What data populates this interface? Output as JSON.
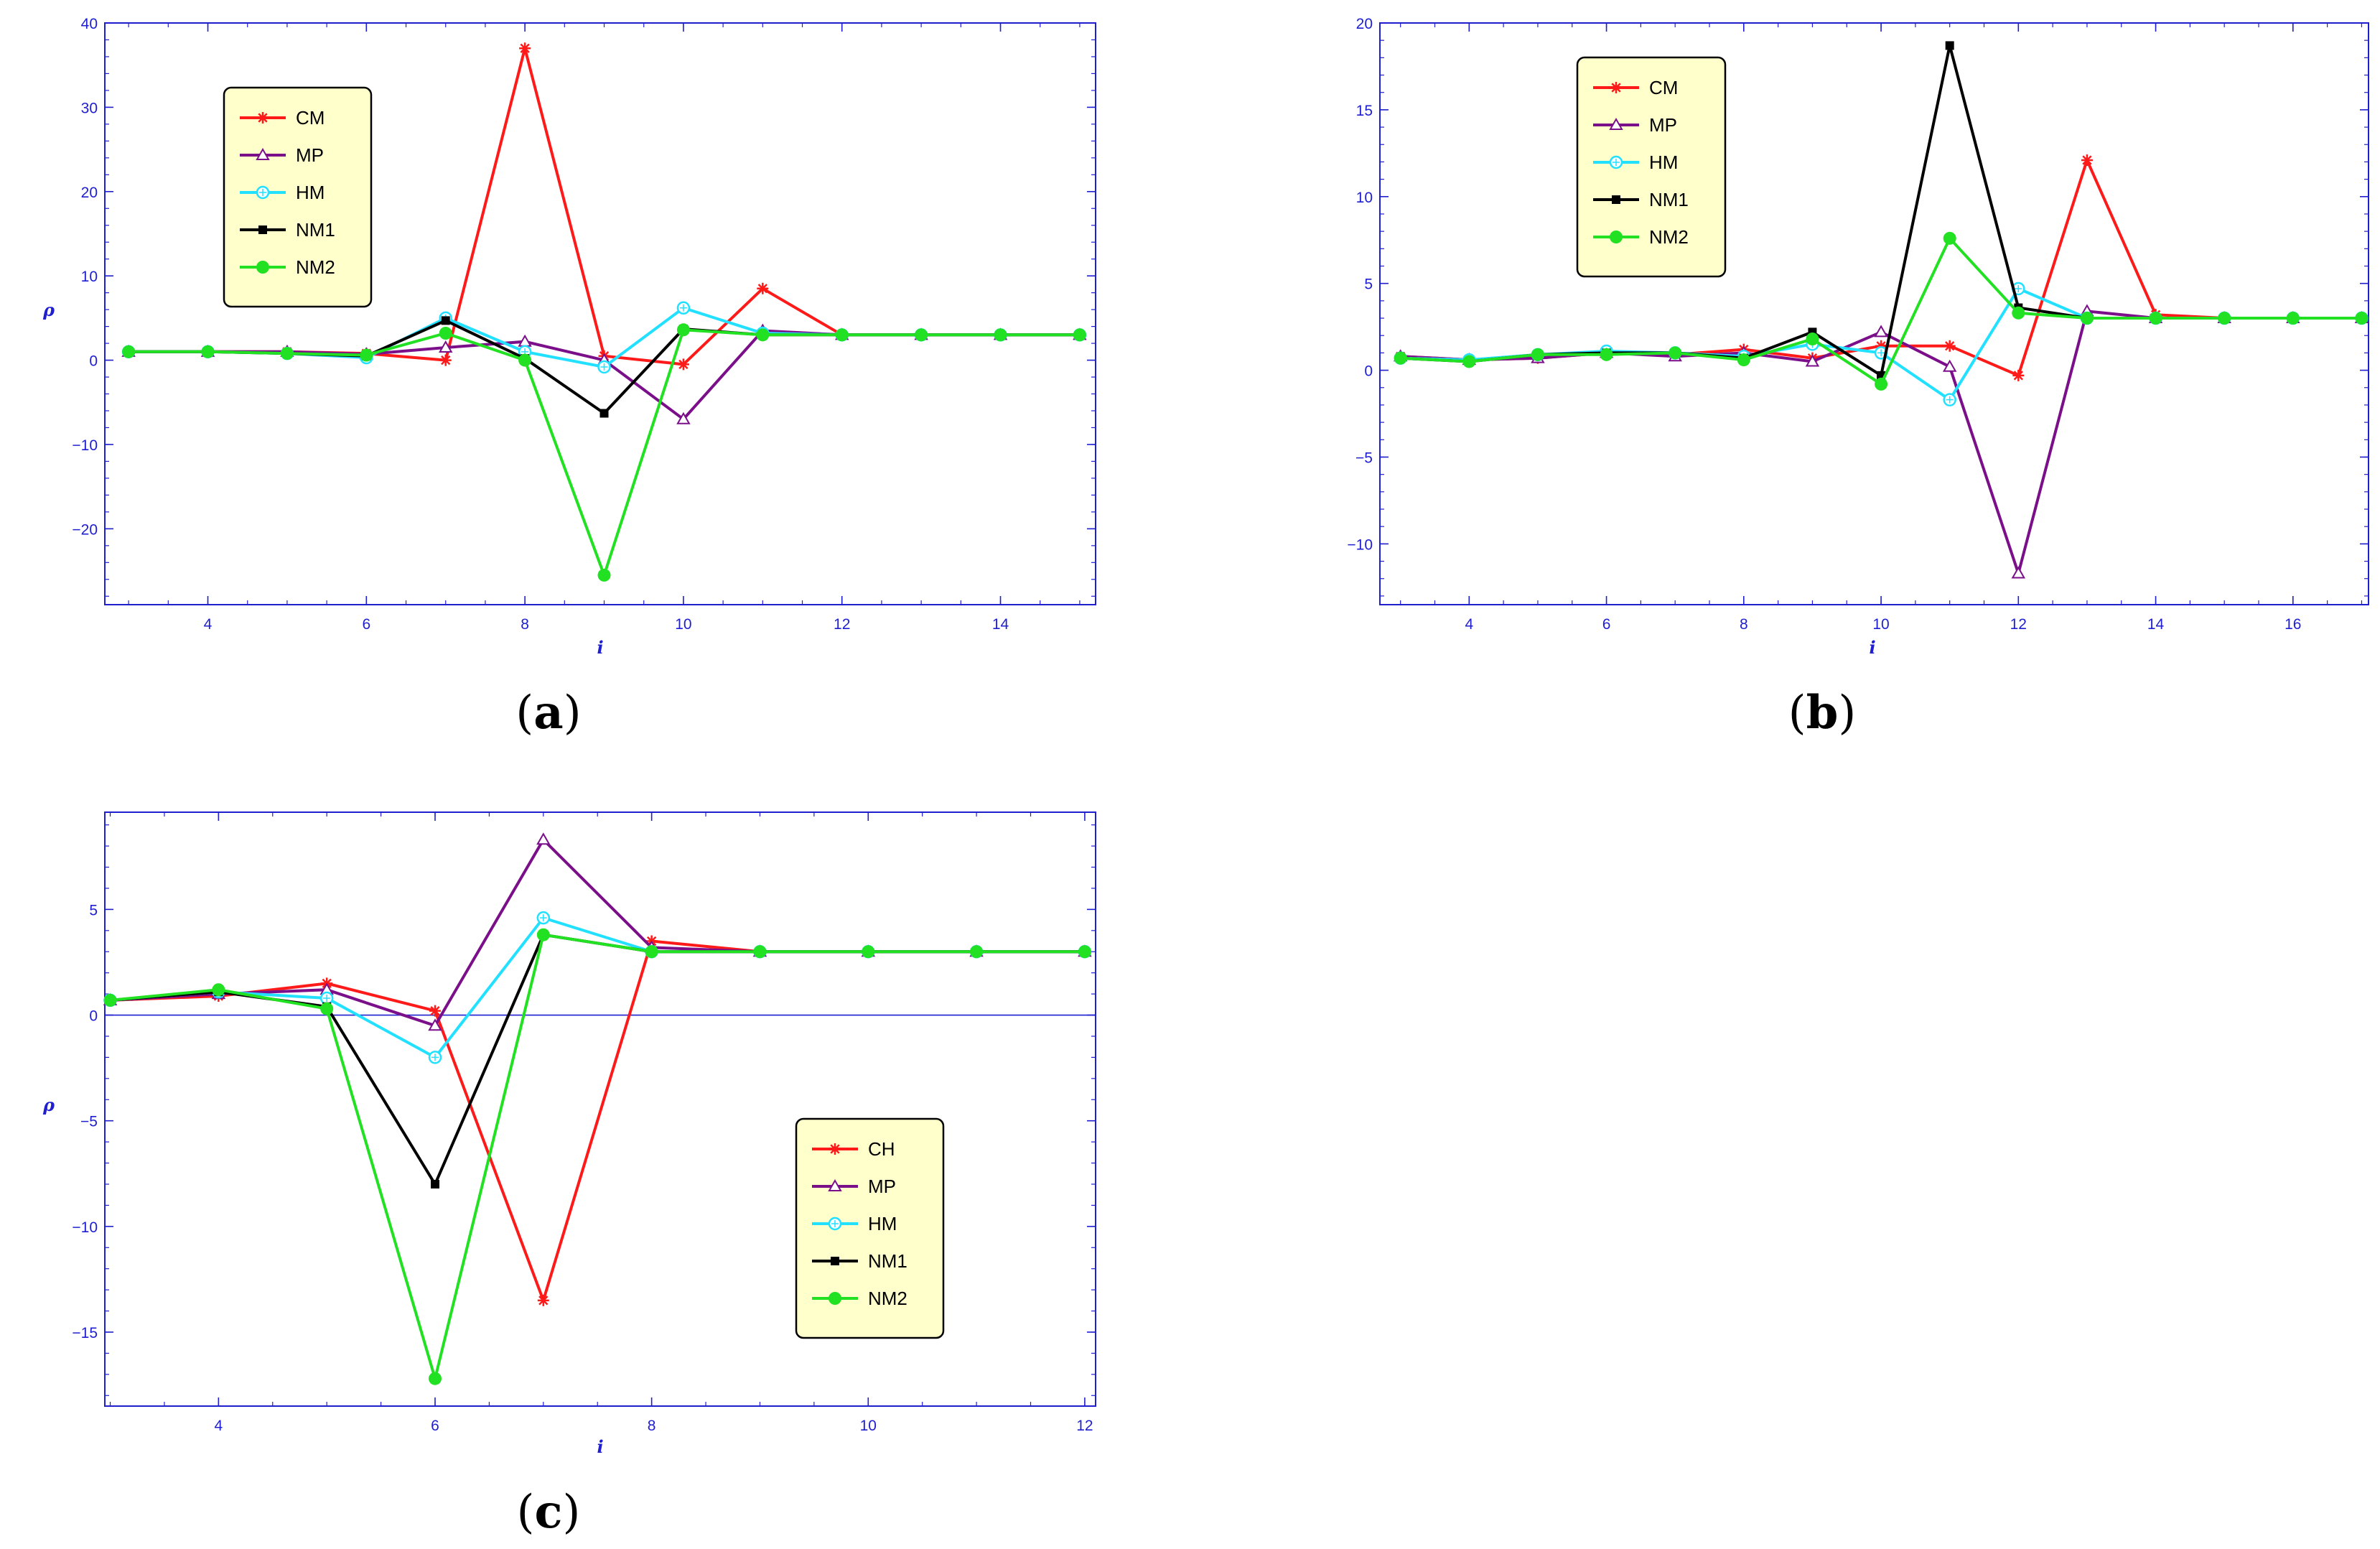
{
  "chart_data": [
    {
      "type": "line",
      "caption": "(a)",
      "xlabel": "i",
      "ylabel": "ρ",
      "xlim": [
        2.7,
        15.2
      ],
      "ylim": [
        -29,
        40
      ],
      "xticks": [
        4,
        6,
        8,
        10,
        12,
        14
      ],
      "yticks": [
        -20,
        -10,
        0,
        10,
        20,
        30,
        40
      ],
      "zero_line": false,
      "legend_position": "upper-left",
      "series": [
        {
          "name": "CM",
          "color": "#ff1a1a",
          "marker": "star",
          "x": [
            3,
            4,
            5,
            6,
            7,
            8,
            9,
            10,
            11,
            12,
            13,
            14,
            15
          ],
          "y": [
            1.0,
            1.0,
            1.0,
            0.8,
            0.0,
            37.0,
            0.5,
            -0.5,
            8.5,
            3.0,
            3.0,
            3.0,
            3.0
          ]
        },
        {
          "name": "MP",
          "color": "#7b0f8a",
          "marker": "triangle",
          "x": [
            3,
            4,
            5,
            6,
            7,
            8,
            9,
            10,
            11,
            12,
            13,
            14,
            15
          ],
          "y": [
            1.0,
            1.0,
            1.0,
            0.7,
            1.5,
            2.2,
            0.0,
            -7.0,
            3.5,
            3.0,
            3.0,
            3.0,
            3.0
          ]
        },
        {
          "name": "HM",
          "color": "#22e0ff",
          "marker": "circle-open",
          "x": [
            3,
            4,
            5,
            6,
            7,
            8,
            9,
            10,
            11,
            12,
            13,
            14,
            15
          ],
          "y": [
            1.0,
            1.0,
            0.8,
            0.3,
            5.0,
            1.0,
            -0.8,
            6.2,
            3.2,
            3.0,
            3.0,
            3.0,
            3.0
          ]
        },
        {
          "name": "NM1",
          "color": "#000000",
          "marker": "square",
          "x": [
            3,
            4,
            5,
            6,
            7,
            8,
            9,
            10,
            11,
            12,
            13,
            14,
            15
          ],
          "y": [
            1.0,
            1.0,
            0.8,
            0.5,
            4.7,
            0.2,
            -6.3,
            3.7,
            3.0,
            3.0,
            3.0,
            3.0,
            3.0
          ]
        },
        {
          "name": "NM2",
          "color": "#22e022",
          "marker": "circle",
          "x": [
            3,
            4,
            5,
            6,
            7,
            8,
            9,
            10,
            11,
            12,
            13,
            14,
            15
          ],
          "y": [
            1.0,
            1.0,
            0.8,
            0.6,
            3.2,
            0.0,
            -25.5,
            3.6,
            3.0,
            3.0,
            3.0,
            3.0,
            3.0
          ]
        }
      ]
    },
    {
      "type": "line",
      "caption": "(b)",
      "xlabel": "i",
      "ylabel": "",
      "xlim": [
        2.7,
        17.1
      ],
      "ylim": [
        -13.5,
        20
      ],
      "xticks": [
        4,
        6,
        8,
        10,
        12,
        14,
        16
      ],
      "yticks": [
        -10,
        -5,
        0,
        5,
        10,
        15,
        20
      ],
      "zero_line": false,
      "legend_position": "upper-left",
      "series": [
        {
          "name": "CM",
          "color": "#ff1a1a",
          "marker": "star",
          "x": [
            3,
            4,
            5,
            6,
            7,
            8,
            9,
            10,
            11,
            12,
            13,
            14,
            15,
            16,
            17
          ],
          "y": [
            0.8,
            0.6,
            0.7,
            1.0,
            0.9,
            1.2,
            0.7,
            1.4,
            1.4,
            -0.3,
            12.1,
            3.2,
            3.0,
            3.0,
            3.0
          ]
        },
        {
          "name": "MP",
          "color": "#7b0f8a",
          "marker": "triangle",
          "x": [
            3,
            4,
            5,
            6,
            7,
            8,
            9,
            10,
            11,
            12,
            13,
            14,
            15,
            16,
            17
          ],
          "y": [
            0.8,
            0.6,
            0.7,
            1.0,
            0.8,
            1.0,
            0.5,
            2.2,
            0.2,
            -11.7,
            3.4,
            3.0,
            3.0,
            3.0,
            3.0
          ]
        },
        {
          "name": "HM",
          "color": "#22e0ff",
          "marker": "circle-open",
          "x": [
            3,
            4,
            5,
            6,
            7,
            8,
            9,
            10,
            11,
            12,
            13,
            14,
            15,
            16,
            17
          ],
          "y": [
            0.7,
            0.6,
            0.9,
            1.1,
            1.0,
            0.8,
            1.5,
            1.0,
            -1.7,
            4.7,
            3.0,
            3.0,
            3.0,
            3.0,
            3.0
          ]
        },
        {
          "name": "NM1",
          "color": "#000000",
          "marker": "square",
          "x": [
            3,
            4,
            5,
            6,
            7,
            8,
            9,
            10,
            11,
            12,
            13,
            14,
            15,
            16,
            17
          ],
          "y": [
            0.7,
            0.5,
            0.9,
            1.0,
            1.0,
            0.7,
            2.2,
            -0.3,
            18.7,
            3.6,
            3.0,
            3.0,
            3.0,
            3.0,
            3.0
          ]
        },
        {
          "name": "NM2",
          "color": "#22e022",
          "marker": "circle",
          "x": [
            3,
            4,
            5,
            6,
            7,
            8,
            9,
            10,
            11,
            12,
            13,
            14,
            15,
            16,
            17
          ],
          "y": [
            0.7,
            0.5,
            0.9,
            0.9,
            1.0,
            0.6,
            1.8,
            -0.8,
            7.6,
            3.3,
            3.0,
            3.0,
            3.0,
            3.0,
            3.0
          ]
        }
      ]
    },
    {
      "type": "line",
      "caption": "(c)",
      "xlabel": "i",
      "ylabel": "ρ",
      "xlim": [
        2.95,
        12.1
      ],
      "ylim": [
        -18.5,
        9.6
      ],
      "xticks": [
        4,
        6,
        8,
        10,
        12
      ],
      "yticks": [
        -15,
        -10,
        -5,
        0,
        5
      ],
      "zero_line": true,
      "legend_position": "lower-right",
      "series": [
        {
          "name": "CH",
          "color": "#ff1a1a",
          "marker": "star",
          "x": [
            3,
            4,
            5,
            6,
            7,
            8,
            9,
            10,
            11,
            12
          ],
          "y": [
            0.7,
            0.9,
            1.5,
            0.2,
            -13.5,
            3.5,
            3.0,
            3.0,
            3.0,
            3.0
          ]
        },
        {
          "name": "MP",
          "color": "#7b0f8a",
          "marker": "triangle",
          "x": [
            3,
            4,
            5,
            6,
            7,
            8,
            9,
            10,
            11,
            12
          ],
          "y": [
            0.7,
            1.0,
            1.2,
            -0.5,
            8.3,
            3.2,
            3.0,
            3.0,
            3.0,
            3.0
          ]
        },
        {
          "name": "HM",
          "color": "#22e0ff",
          "marker": "circle-open",
          "x": [
            3,
            4,
            5,
            6,
            7,
            8,
            9,
            10,
            11,
            12
          ],
          "y": [
            0.7,
            1.1,
            0.8,
            -2.0,
            4.6,
            3.0,
            3.0,
            3.0,
            3.0,
            3.0
          ]
        },
        {
          "name": "NM1",
          "color": "#000000",
          "marker": "square",
          "x": [
            3,
            4,
            5,
            6,
            7,
            8,
            9,
            10,
            11,
            12
          ],
          "y": [
            0.7,
            1.1,
            0.4,
            -8.0,
            3.8,
            3.0,
            3.0,
            3.0,
            3.0,
            3.0
          ]
        },
        {
          "name": "NM2",
          "color": "#22e022",
          "marker": "circle",
          "x": [
            3,
            4,
            5,
            6,
            7,
            8,
            9,
            10,
            11,
            12
          ],
          "y": [
            0.7,
            1.2,
            0.3,
            -17.2,
            3.8,
            3.0,
            3.0,
            3.0,
            3.0,
            3.0
          ]
        }
      ]
    }
  ]
}
